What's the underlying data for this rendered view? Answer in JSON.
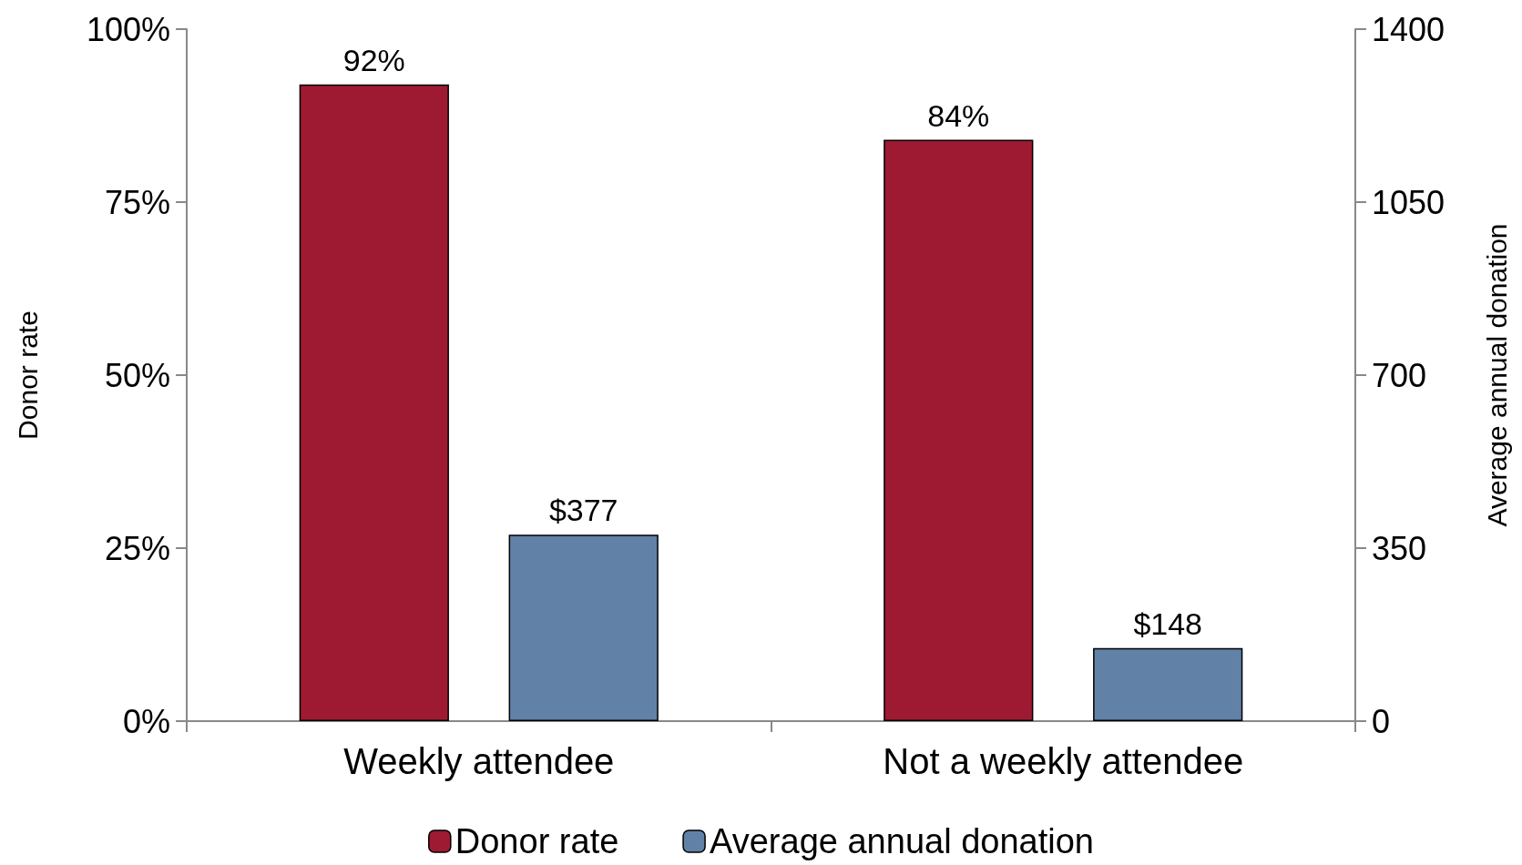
{
  "chart_data": {
    "type": "bar",
    "categories": [
      "Weekly attendee",
      "Not a weekly attendee"
    ],
    "series": [
      {
        "name": "Donor rate",
        "color": "#9e1a32",
        "values": [
          92,
          84
        ],
        "value_labels": [
          "92%",
          "84%"
        ]
      },
      {
        "name": "Average annual donation",
        "color": "#6281a6",
        "axis": "y2",
        "values": [
          377,
          148
        ],
        "value_labels": [
          "$377",
          "$148"
        ]
      }
    ],
    "ylabel": "Donor rate",
    "y2label": "Average annual donation",
    "ylim": [
      0,
      100
    ],
    "yticks": [
      {
        "value": 0,
        "label": "0%"
      },
      {
        "value": 25,
        "label": "25%"
      },
      {
        "value": 50,
        "label": "50%"
      },
      {
        "value": 75,
        "label": "75%"
      },
      {
        "value": 100,
        "label": "100%"
      }
    ],
    "y2lim": [
      0,
      1400
    ],
    "y2ticks": [
      0,
      350,
      700,
      1050,
      1400
    ],
    "grid": false,
    "legend": "bottom"
  }
}
